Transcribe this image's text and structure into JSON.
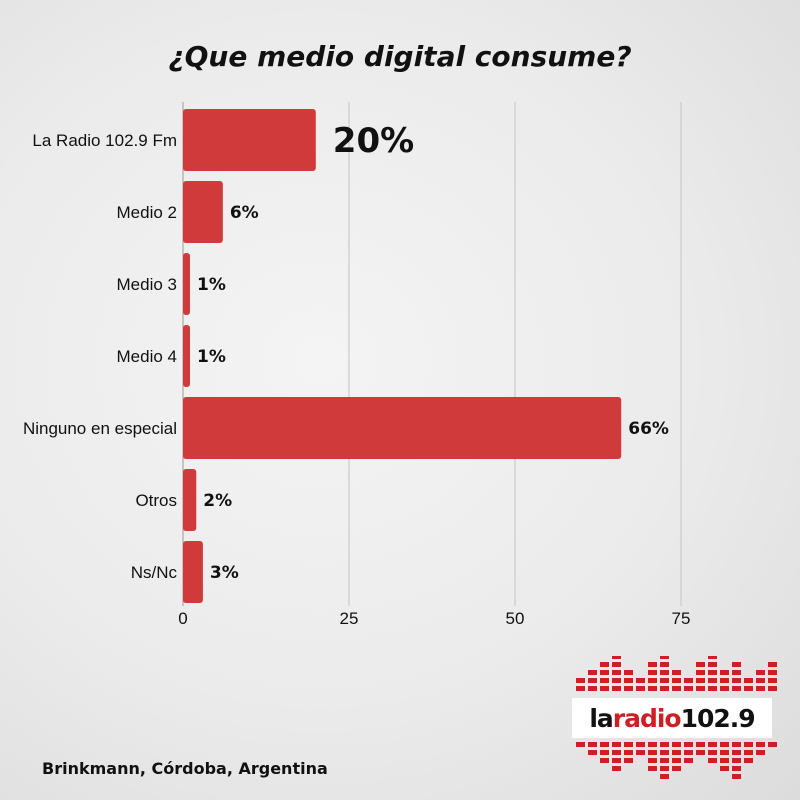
{
  "chart_data": {
    "type": "bar",
    "orientation": "horizontal",
    "title": "¿Que medio digital consume?",
    "categories": [
      "La Radio 102.9 Fm",
      "Medio 2",
      "Medio 3",
      "Medio 4",
      "Ninguno en especial",
      "Otros",
      "Ns/Nc"
    ],
    "values": [
      20,
      6,
      1,
      1,
      66,
      2,
      3
    ],
    "data_labels": [
      "20%",
      "6%",
      "1%",
      "1%",
      "66%",
      "2%",
      "3%"
    ],
    "xticks": [
      "0",
      "25",
      "50",
      "75"
    ],
    "xlim": [
      0,
      93
    ],
    "grid": "vertical",
    "bar_color": "#d03a3b"
  },
  "footer": "Brinkmann, Córdoba, Argentina",
  "logo": {
    "pre": "la",
    "mid": "radio",
    "post": "102.9"
  }
}
